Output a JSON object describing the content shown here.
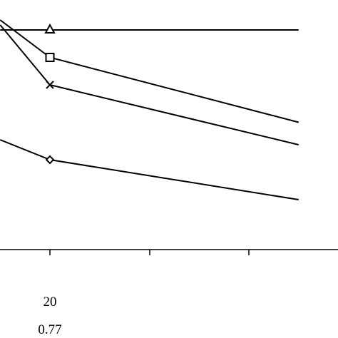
{
  "chart_data": {
    "type": "line",
    "title": "",
    "xlabel": "",
    "ylabel": "",
    "grid": false,
    "legend": "none",
    "x": [
      10,
      20,
      70
    ],
    "xlim": [
      10,
      70
    ],
    "x_ticks": [
      20,
      40,
      60
    ],
    "tick_labels": [
      {
        "x": 20,
        "row1": "20",
        "row2": "0.77"
      }
    ],
    "ylim": [
      0,
      100
    ],
    "series": [
      {
        "marker": "triangle",
        "values": [
          88,
          88,
          88
        ]
      },
      {
        "marker": "square",
        "values": [
          92,
          77,
          51
        ]
      },
      {
        "marker": "x",
        "values": [
          90,
          66,
          42
        ]
      },
      {
        "marker": "diamond",
        "values": [
          44,
          36,
          20
        ]
      }
    ],
    "colors": {
      "line": "#000000",
      "background": "#ffffff"
    }
  }
}
